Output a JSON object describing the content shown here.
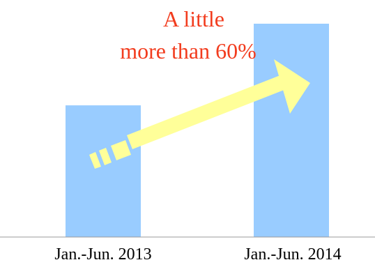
{
  "chart_data": {
    "type": "bar",
    "categories": [
      "Jan.-Jun. 2013",
      "Jan.-Jun. 2014"
    ],
    "values": [
      100,
      162
    ],
    "ylim": [
      0,
      180
    ],
    "grid": false,
    "legend": "none",
    "annotation": {
      "lines": [
        "A little",
        "more than 60%"
      ],
      "color": "#f23c1e"
    },
    "colors": {
      "bar": "#99ccff",
      "arrow": "#ffff99",
      "axis": "#999999"
    }
  }
}
